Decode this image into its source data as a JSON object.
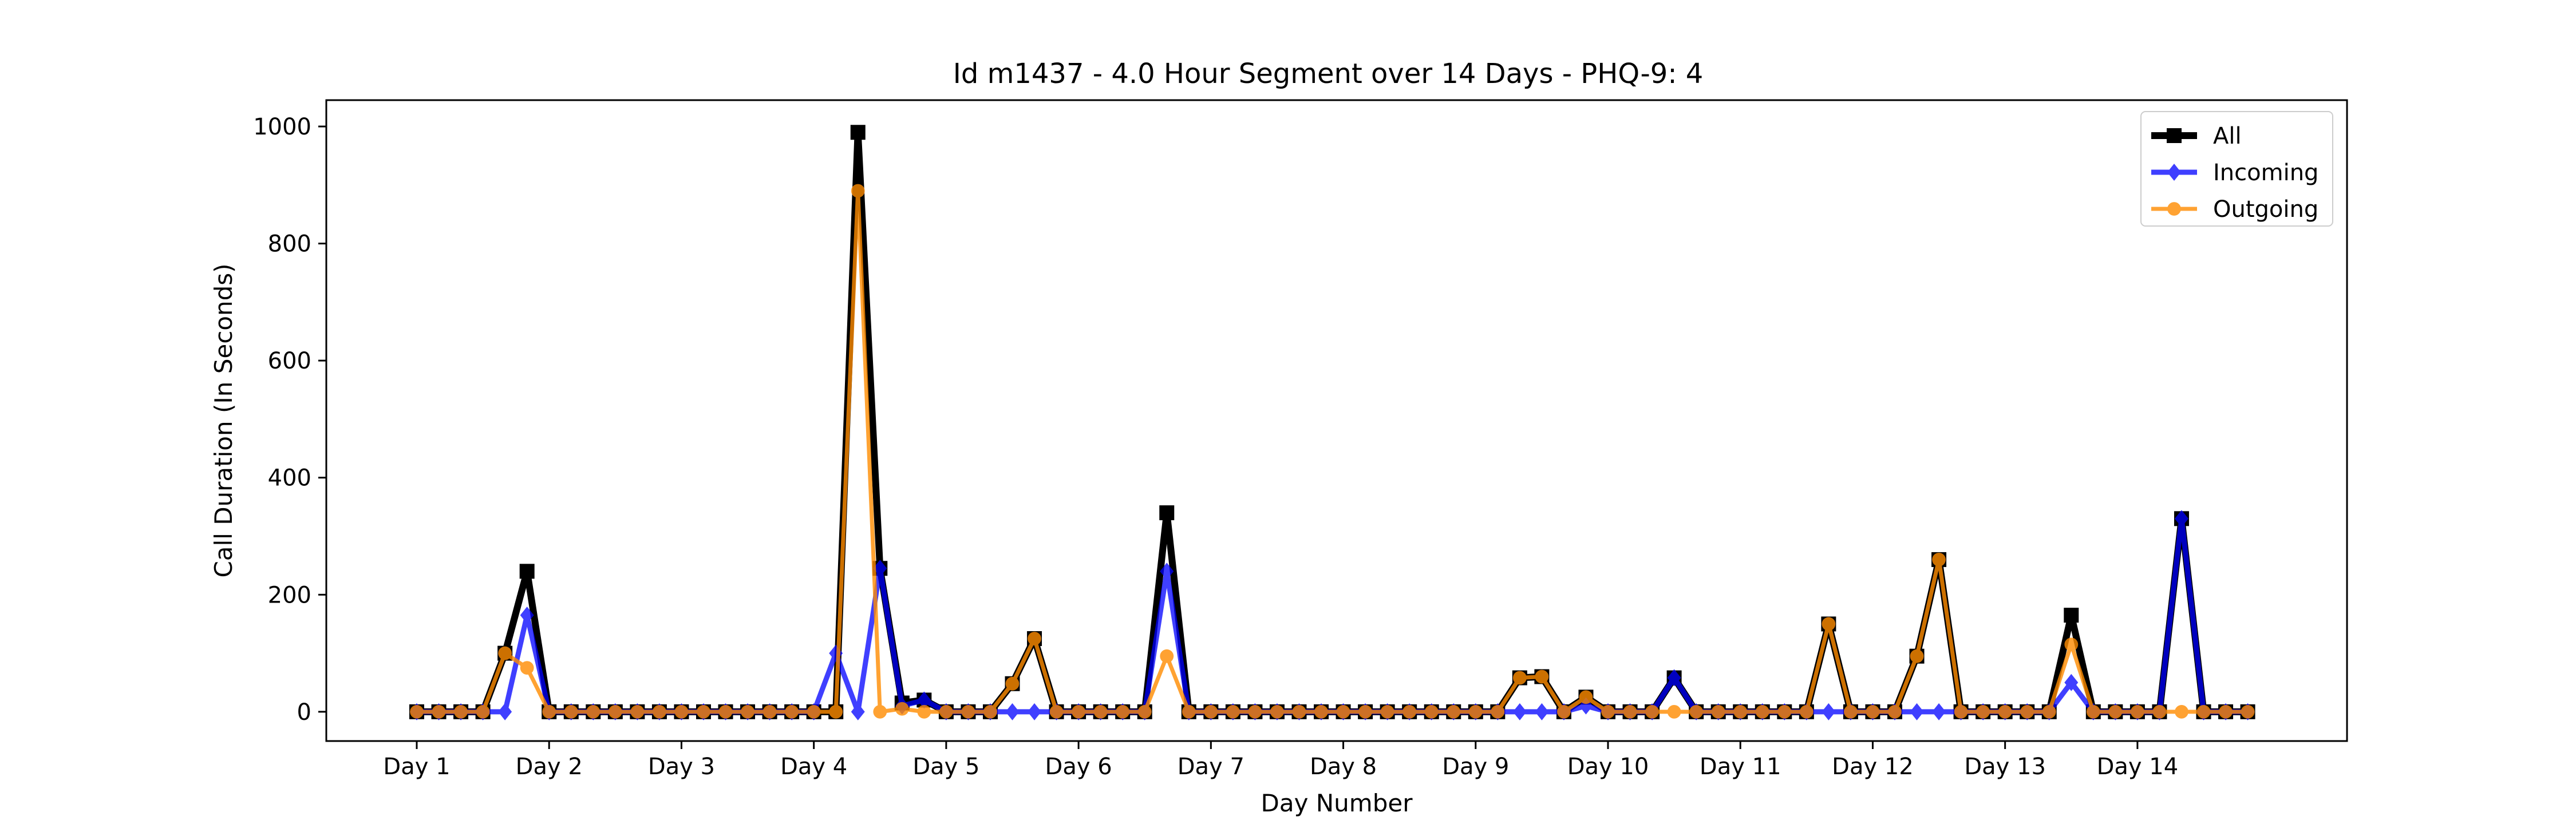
{
  "chart_data": {
    "type": "line",
    "title": "Id m1437 - 4.0 Hour Segment over 14 Days - PHQ-9: 4",
    "xlabel": "Day Number",
    "ylabel": "Call Duration (In Seconds)",
    "ylim": [
      -50,
      1045
    ],
    "yticks": [
      0,
      200,
      400,
      600,
      800,
      1000
    ],
    "xticks": [
      {
        "x": 0,
        "label": "Day 1"
      },
      {
        "x": 6,
        "label": "Day 2"
      },
      {
        "x": 12,
        "label": "Day 3"
      },
      {
        "x": 18,
        "label": "Day 4"
      },
      {
        "x": 24,
        "label": "Day 5"
      },
      {
        "x": 30,
        "label": "Day 6"
      },
      {
        "x": 36,
        "label": "Day 7"
      },
      {
        "x": 42,
        "label": "Day 8"
      },
      {
        "x": 48,
        "label": "Day 9"
      },
      {
        "x": 54,
        "label": "Day 10"
      },
      {
        "x": 60,
        "label": "Day 11"
      },
      {
        "x": 66,
        "label": "Day 12"
      },
      {
        "x": 72,
        "label": "Day 13"
      },
      {
        "x": 78,
        "label": "Day 14"
      }
    ],
    "xlim": [
      -4.1,
      87.5
    ],
    "legend_position": "top-right",
    "series": [
      {
        "name": "All",
        "color": "#000000",
        "marker": "square",
        "values": [
          0,
          0,
          0,
          0,
          100,
          240,
          0,
          0,
          0,
          0,
          0,
          0,
          0,
          0,
          0,
          0,
          0,
          0,
          0,
          0,
          990,
          245,
          15,
          20,
          0,
          0,
          0,
          48,
          125,
          0,
          0,
          0,
          0,
          0,
          340,
          0,
          0,
          0,
          0,
          0,
          0,
          0,
          0,
          0,
          0,
          0,
          0,
          0,
          0,
          0,
          58,
          60,
          0,
          25,
          0,
          0,
          0,
          58,
          0,
          0,
          0,
          0,
          0,
          0,
          150,
          0,
          0,
          0,
          95,
          260,
          0,
          0,
          0,
          0,
          0,
          165,
          0,
          0,
          0,
          0,
          330,
          0,
          0,
          0
        ]
      },
      {
        "name": "Incoming",
        "color": "#0000ff",
        "marker": "diamond",
        "values": [
          0,
          0,
          0,
          0,
          0,
          165,
          0,
          0,
          0,
          0,
          0,
          0,
          0,
          0,
          0,
          0,
          0,
          0,
          0,
          100,
          0,
          245,
          10,
          20,
          0,
          0,
          0,
          0,
          0,
          0,
          0,
          0,
          0,
          0,
          240,
          0,
          0,
          0,
          0,
          0,
          0,
          0,
          0,
          0,
          0,
          0,
          0,
          0,
          0,
          0,
          0,
          0,
          0,
          10,
          0,
          0,
          0,
          58,
          0,
          0,
          0,
          0,
          0,
          0,
          0,
          0,
          0,
          0,
          0,
          0,
          0,
          0,
          0,
          0,
          0,
          50,
          0,
          0,
          0,
          0,
          330,
          0,
          0,
          0
        ]
      },
      {
        "name": "Outgoing",
        "color": "#ff8c00",
        "marker": "circle",
        "values": [
          0,
          0,
          0,
          0,
          100,
          75,
          0,
          0,
          0,
          0,
          0,
          0,
          0,
          0,
          0,
          0,
          0,
          0,
          0,
          0,
          890,
          0,
          5,
          0,
          0,
          0,
          0,
          48,
          125,
          0,
          0,
          0,
          0,
          0,
          95,
          0,
          0,
          0,
          0,
          0,
          0,
          0,
          0,
          0,
          0,
          0,
          0,
          0,
          0,
          0,
          58,
          60,
          0,
          25,
          0,
          0,
          0,
          0,
          0,
          0,
          0,
          0,
          0,
          0,
          150,
          0,
          0,
          0,
          95,
          260,
          0,
          0,
          0,
          0,
          0,
          115,
          0,
          0,
          0,
          0,
          0,
          0,
          0,
          0
        ]
      }
    ]
  }
}
